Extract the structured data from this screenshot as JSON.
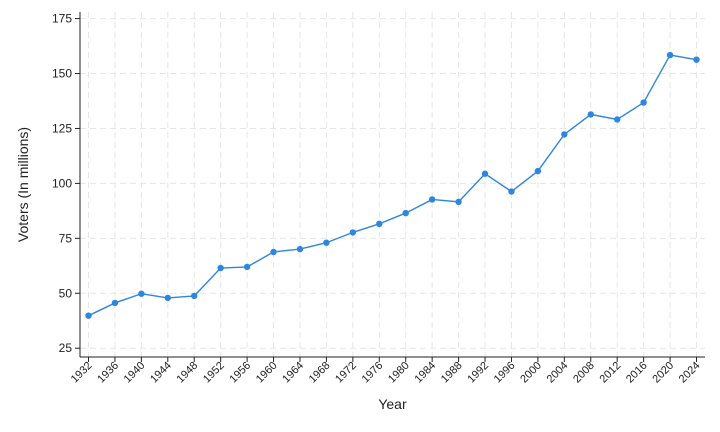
{
  "chart_data": {
    "type": "line",
    "xlabel": "Year",
    "ylabel": "Voters (In millions)",
    "ylim": [
      21,
      178
    ],
    "yticks": [
      25,
      50,
      75,
      100,
      125,
      150,
      175
    ],
    "grid": true,
    "legend": "none",
    "color": "#2e86de",
    "x": [
      "1932",
      "1936",
      "1940",
      "1944",
      "1948",
      "1952",
      "1956",
      "1960",
      "1964",
      "1968",
      "1972",
      "1976",
      "1980",
      "1984",
      "1988",
      "1992",
      "1996",
      "2000",
      "2004",
      "2008",
      "2012",
      "2016",
      "2020",
      "2024"
    ],
    "series": [
      {
        "values": [
          39.8,
          45.6,
          49.8,
          47.9,
          48.8,
          61.5,
          62.0,
          68.8,
          70.1,
          73.0,
          77.7,
          81.6,
          86.5,
          92.7,
          91.6,
          104.4,
          96.3,
          105.6,
          122.3,
          131.4,
          129.1,
          136.8,
          158.4,
          156.3
        ]
      }
    ]
  }
}
